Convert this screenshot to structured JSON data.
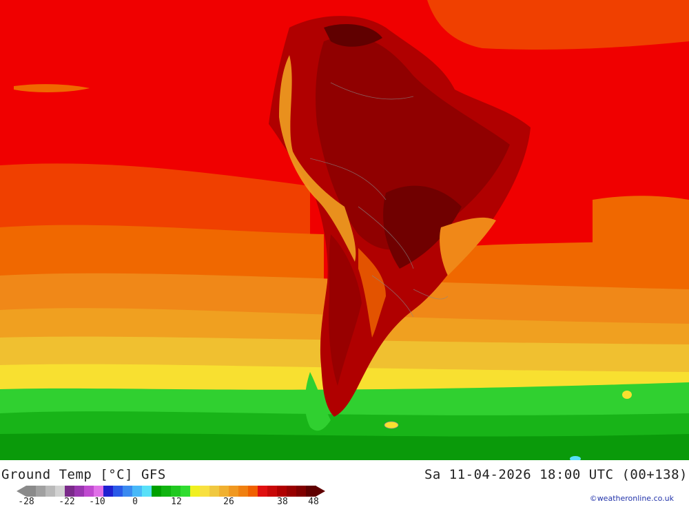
{
  "title": "Ground Temp [°C] GFS",
  "datetime": "Sa 11-04-2026 18:00 UTC (00+138)",
  "credit": "©weatheronline.co.uk",
  "legend": {
    "labels": [
      "-28",
      "-22",
      "-10",
      "0",
      "12",
      "26",
      "38",
      "48"
    ],
    "colors": [
      "#8a8a8a",
      "#a0a0a0",
      "#b9b9b9",
      "#d2d2d2",
      "#7a2a8a",
      "#9a36b0",
      "#c04ad0",
      "#e070e8",
      "#2020d0",
      "#2a5ae8",
      "#3a8af0",
      "#48b8f8",
      "#58e0f8",
      "#00a000",
      "#10b410",
      "#20c820",
      "#30dc30",
      "#f0f020",
      "#f8e040",
      "#f0c840",
      "#f0b030",
      "#f09820",
      "#f08010",
      "#f06000",
      "#e01010",
      "#c80808",
      "#b00000",
      "#980000",
      "#800000",
      "#600000"
    ]
  }
}
